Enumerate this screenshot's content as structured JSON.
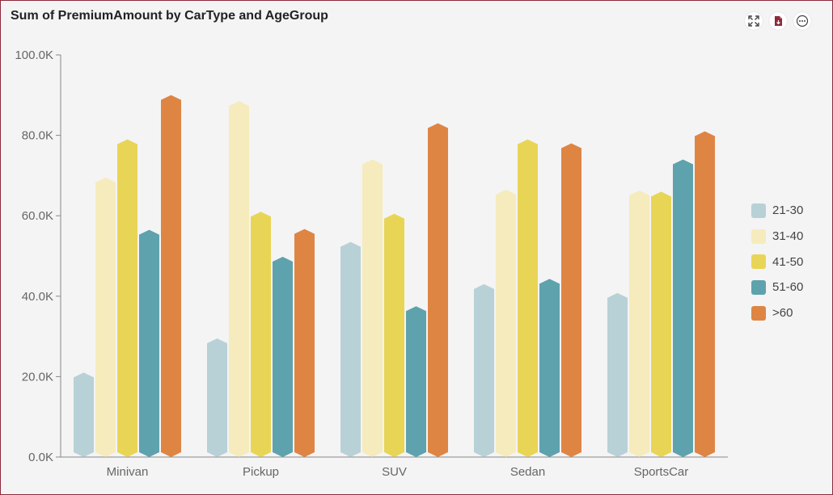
{
  "colors": {
    "21-30": "#b8d1d7",
    "31-40": "#f6ebbc",
    "41-50": "#e8d556",
    "51-60": "#5ea2ad",
    ">60": "#df8544"
  },
  "toolbar": {
    "expand_icon": "expand-icon",
    "export_icon": "export-icon",
    "more_icon": "more-icon"
  },
  "chart_data": {
    "type": "bar",
    "title": "Sum of PremiumAmount by CarType and AgeGroup",
    "xlabel": "",
    "ylabel": "",
    "categories": [
      "Minivan",
      "Pickup",
      "SUV",
      "Sedan",
      "SportsCar"
    ],
    "series": [
      {
        "name": "21-30",
        "values": [
          21000,
          29500,
          53500,
          43000,
          40800
        ]
      },
      {
        "name": "31-40",
        "values": [
          69500,
          88500,
          74000,
          66500,
          66300
        ]
      },
      {
        "name": "41-50",
        "values": [
          79000,
          61000,
          60500,
          79000,
          66000
        ]
      },
      {
        "name": "51-60",
        "values": [
          56500,
          49800,
          37500,
          44300,
          74000
        ]
      },
      {
        "name": ">60",
        "values": [
          90000,
          56700,
          83000,
          78000,
          81000
        ]
      }
    ],
    "yticks": [
      "0.0K",
      "20.0K",
      "40.0K",
      "60.0K",
      "80.0K",
      "100.0K"
    ],
    "ylim": [
      0,
      100000
    ],
    "legend_position": "right"
  }
}
